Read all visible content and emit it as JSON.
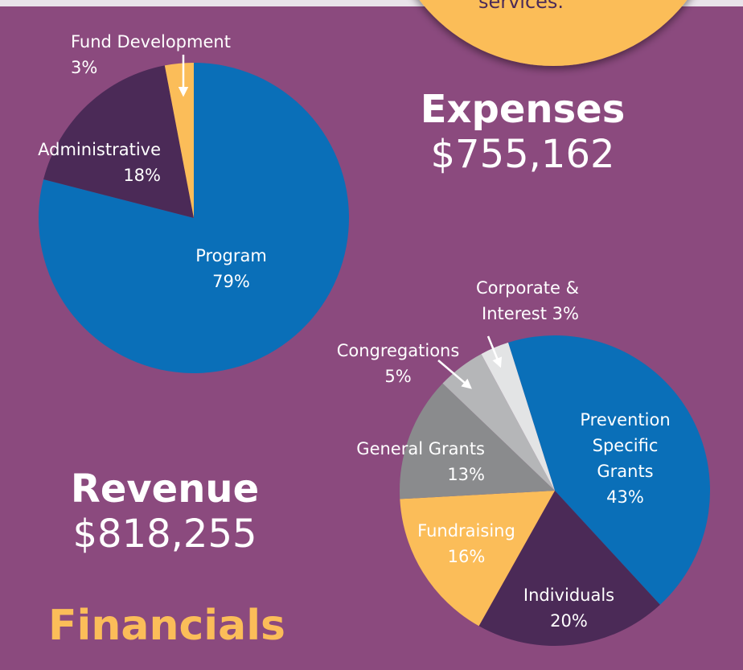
{
  "banner_text": "services.",
  "heading": "Financials",
  "chart_data": [
    {
      "type": "pie",
      "title": "Expenses",
      "subtitle": "$755,162",
      "categories": [
        "Program",
        "Administrative",
        "Fund Development"
      ],
      "values": [
        79,
        18,
        3
      ],
      "value_labels": [
        "79%",
        "18%",
        "3%"
      ],
      "colors": [
        "#0a6fb8",
        "#4b2a57",
        "#fbbd59"
      ]
    },
    {
      "type": "pie",
      "title": "Revenue",
      "subtitle": "$818,255",
      "categories": [
        "Prevention Specific Grants",
        "Individuals",
        "Fundraising",
        "General Grants",
        "Congregations",
        "Corporate & Interest"
      ],
      "values": [
        43,
        20,
        16,
        13,
        5,
        3
      ],
      "value_labels": [
        "43%",
        "20%",
        "16%",
        "13%",
        "5%",
        "3%"
      ],
      "colors": [
        "#0a6fb8",
        "#4b2a57",
        "#fbbd59",
        "#8a8b8d",
        "#b5b6b8",
        "#e3e4e5"
      ]
    }
  ]
}
